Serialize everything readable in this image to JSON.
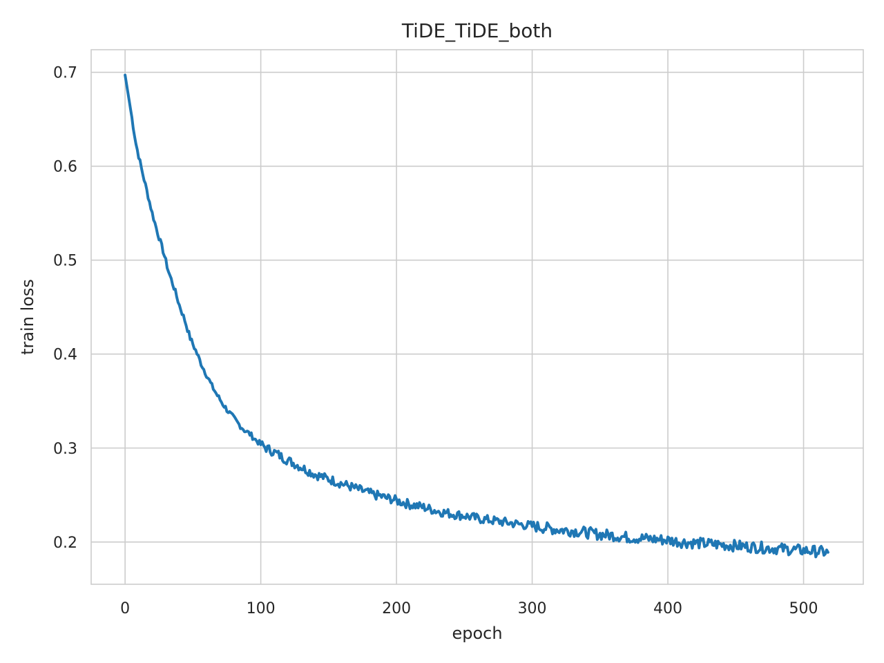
{
  "chart_data": {
    "type": "line",
    "title": "TiDE_TiDE_both",
    "xlabel": "epoch",
    "ylabel": "train loss",
    "xlim": [
      -25,
      544
    ],
    "ylim": [
      0.155,
      0.724
    ],
    "xticks": [
      0,
      100,
      200,
      300,
      400,
      500
    ],
    "yticks": [
      0.2,
      0.3,
      0.4,
      0.5,
      0.6,
      0.7
    ],
    "xtick_labels": [
      "0",
      "100",
      "200",
      "300",
      "400",
      "500"
    ],
    "ytick_labels": [
      "0.2",
      "0.3",
      "0.4",
      "0.5",
      "0.6",
      "0.7"
    ],
    "grid": true,
    "line_color": "#1f77b4",
    "series": [
      {
        "x": [
          0,
          4,
          8,
          12,
          16,
          20,
          24,
          28,
          32,
          36,
          40,
          44,
          48,
          52,
          56,
          60,
          64,
          68,
          72,
          76,
          80,
          84,
          88,
          92,
          96,
          100,
          104,
          108,
          112,
          116,
          120,
          124,
          128,
          132,
          136,
          140,
          144,
          148,
          152,
          156,
          160,
          164,
          168,
          172,
          176,
          180,
          184,
          188,
          192,
          196,
          200,
          210,
          220,
          230,
          240,
          250,
          260,
          270,
          280,
          290,
          300,
          310,
          320,
          330,
          340,
          350,
          360,
          370,
          380,
          390,
          400,
          410,
          420,
          430,
          440,
          450,
          460,
          470,
          480,
          490,
          500,
          510,
          518
        ],
        "values": [
          0.697,
          0.661,
          0.624,
          0.598,
          0.574,
          0.55,
          0.529,
          0.51,
          0.488,
          0.471,
          0.452,
          0.436,
          0.417,
          0.404,
          0.39,
          0.378,
          0.366,
          0.356,
          0.347,
          0.339,
          0.332,
          0.325,
          0.319,
          0.315,
          0.309,
          0.304,
          0.3,
          0.297,
          0.294,
          0.29,
          0.287,
          0.284,
          0.281,
          0.278,
          0.275,
          0.272,
          0.27,
          0.268,
          0.266,
          0.264,
          0.262,
          0.26,
          0.258,
          0.256,
          0.254,
          0.252,
          0.25,
          0.249,
          0.247,
          0.246,
          0.244,
          0.24,
          0.237,
          0.233,
          0.23,
          0.228,
          0.225,
          0.223,
          0.221,
          0.219,
          0.217,
          0.215,
          0.213,
          0.212,
          0.21,
          0.208,
          0.207,
          0.205,
          0.204,
          0.203,
          0.202,
          0.2,
          0.199,
          0.198,
          0.197,
          0.196,
          0.195,
          0.194,
          0.193,
          0.192,
          0.191,
          0.19,
          0.189
        ]
      }
    ]
  }
}
